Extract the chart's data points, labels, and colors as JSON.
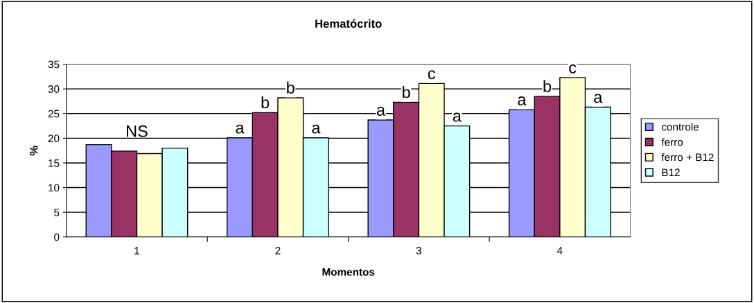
{
  "chart_data": {
    "type": "bar",
    "title": "Hematócrito",
    "xlabel": "Momentos",
    "ylabel": "%",
    "categories": [
      "1",
      "2",
      "3",
      "4"
    ],
    "series": [
      {
        "name": "controle",
        "color": "#9999ff",
        "values": [
          18.7,
          20.1,
          23.7,
          25.8
        ]
      },
      {
        "name": "ferro",
        "color": "#993366",
        "values": [
          17.4,
          25.2,
          27.3,
          28.5
        ]
      },
      {
        "name": "ferro + B12",
        "color": "#ffffcc",
        "values": [
          16.9,
          28.2,
          31.1,
          32.3
        ]
      },
      {
        "name": "B12",
        "color": "#ccffff",
        "values": [
          18.0,
          20.1,
          22.5,
          26.3
        ]
      }
    ],
    "annotations": [
      "NS",
      {
        "text": "a",
        "x": "2",
        "y": 20.1
      },
      {
        "text": "b",
        "x": "2",
        "y": 25.2
      },
      {
        "text": "b",
        "x": "2",
        "y": 28.2
      },
      {
        "text": "a",
        "x": "2",
        "y": 20.1
      },
      {
        "text": "a",
        "x": "3",
        "y": 23.7
      },
      {
        "text": "b",
        "x": "3",
        "y": 27.3
      },
      {
        "text": "c",
        "x": "3",
        "y": 31.1
      },
      {
        "text": "a",
        "x": "3",
        "y": 22.5
      },
      {
        "text": "a",
        "x": "4",
        "y": 25.8
      },
      {
        "text": "b",
        "x": "4",
        "y": 28.5
      },
      {
        "text": "c",
        "x": "4",
        "y": 32.3
      },
      {
        "text": "a",
        "x": "4",
        "y": 26.3
      }
    ],
    "ylim": [
      0,
      35
    ],
    "yticks": [
      0,
      5,
      10,
      15,
      20,
      25,
      30,
      35
    ],
    "grid": "y",
    "legend": "right"
  }
}
